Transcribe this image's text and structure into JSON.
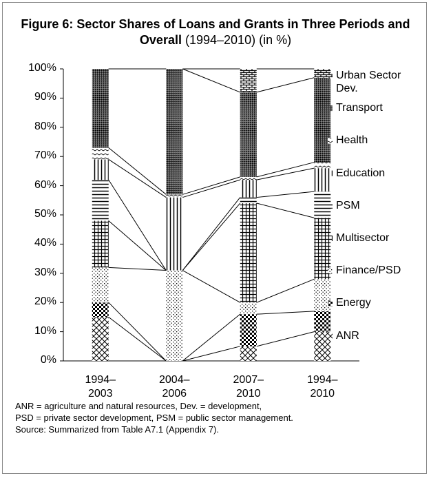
{
  "chart_data": {
    "type": "stacked_bar_100",
    "title": "Figure 6: Sector Shares of Loans and Grants in Three Periods and Overall",
    "subtitle": "(1994–2010) (in %)",
    "categories": [
      "1994–2003",
      "2004–2006",
      "2007–2010",
      "1994–2010"
    ],
    "series": [
      {
        "name": "ANR",
        "color": "#000000",
        "pattern": "crosshatch",
        "values": [
          15,
          0,
          5,
          10
        ]
      },
      {
        "name": "Energy",
        "color": "#000000",
        "pattern": "checker",
        "values": [
          5,
          0,
          11,
          7
        ]
      },
      {
        "name": "Finance/PSD",
        "color": "#000000",
        "pattern": "dots",
        "values": [
          12,
          31,
          4,
          11
        ]
      },
      {
        "name": "Multisector",
        "color": "#000000",
        "pattern": "grid",
        "values": [
          16,
          0,
          34,
          21
        ]
      },
      {
        "name": "PSM",
        "color": "#000000",
        "pattern": "hlines",
        "values": [
          14,
          0,
          2,
          9
        ]
      },
      {
        "name": "Education",
        "color": "#000000",
        "pattern": "vlines",
        "values": [
          7,
          25,
          6,
          8
        ]
      },
      {
        "name": "Health",
        "color": "#000000",
        "pattern": "sparse",
        "values": [
          4,
          1,
          1,
          2
        ]
      },
      {
        "name": "Transport",
        "color": "#000000",
        "pattern": "dense",
        "values": [
          27,
          43,
          29,
          29
        ]
      },
      {
        "name": "Urban Sector Dev.",
        "color": "#000000",
        "pattern": "brick",
        "values": [
          0,
          0,
          8,
          3
        ]
      }
    ],
    "ylim": [
      0,
      100
    ],
    "yticks": [
      {
        "value": 0,
        "label": "0%"
      },
      {
        "value": 10,
        "label": "10%"
      },
      {
        "value": 20,
        "label": "20%"
      },
      {
        "value": 30,
        "label": "30%"
      },
      {
        "value": 40,
        "label": "40%"
      },
      {
        "value": 50,
        "label": "50%"
      },
      {
        "value": 60,
        "label": "60%"
      },
      {
        "value": 70,
        "label": "70%"
      },
      {
        "value": 80,
        "label": "80%"
      },
      {
        "value": 90,
        "label": "90%"
      },
      {
        "value": 100,
        "label": "100%"
      }
    ],
    "notes": [
      "ANR = agriculture and natural resources, Dev. = development,",
      "PSD = private sector development, PSM = public sector management.",
      "Source: Summarized from Table A7.1 (Appendix 7)."
    ]
  }
}
